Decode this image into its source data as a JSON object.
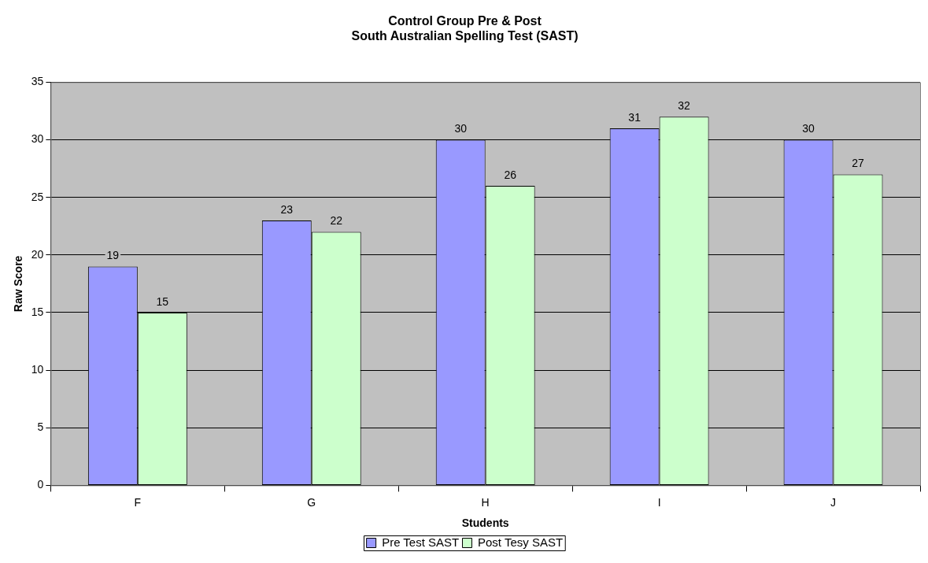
{
  "chart_data": {
    "type": "bar",
    "title": "Control Group Pre & Post\nSouth Australian Spelling Test (SAST)",
    "xlabel": "Students",
    "ylabel": "Raw Score",
    "categories": [
      "F",
      "G",
      "H",
      "I",
      "J"
    ],
    "series": [
      {
        "name": "Pre Test SAST",
        "color": "#9999ff",
        "values": [
          19,
          23,
          30,
          31,
          30
        ]
      },
      {
        "name": "Post Tesy SAST",
        "color": "#ccffcc",
        "values": [
          15,
          22,
          26,
          32,
          27
        ]
      }
    ],
    "ylim": [
      0,
      35
    ],
    "yticks": [
      0,
      5,
      10,
      15,
      20,
      25,
      30,
      35
    ],
    "grid": "y",
    "legend": "bottom",
    "data_labels": true
  }
}
